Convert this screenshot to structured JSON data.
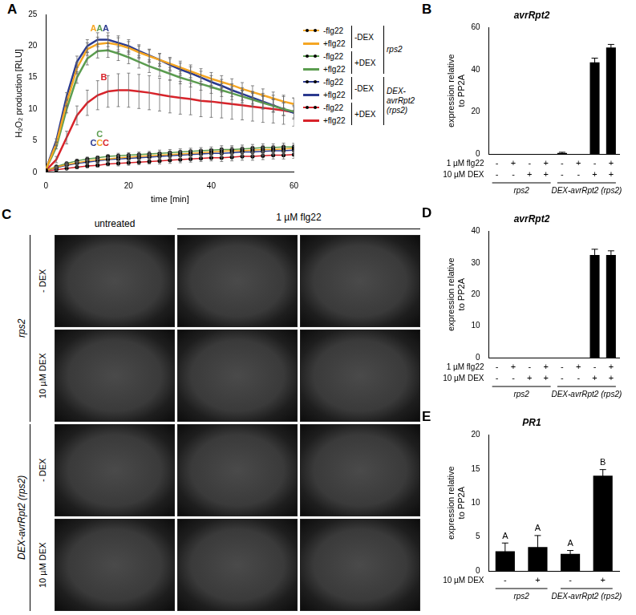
{
  "chart_data": [
    {
      "panel": "A",
      "type": "line",
      "x_label": "time [min]",
      "y_label": "H₂O₂ production [RLU]",
      "xlim": [
        0,
        60
      ],
      "xticks": [
        0,
        20,
        40,
        60
      ],
      "ylim": [
        0,
        25
      ],
      "yticks": [
        0,
        5,
        10,
        15,
        20,
        25
      ],
      "grid": false,
      "legend": "right",
      "x": [
        0,
        2.5,
        5,
        7.5,
        10,
        12.5,
        15,
        17.5,
        20,
        22.5,
        25,
        27.5,
        30,
        32.5,
        35,
        37.5,
        40,
        42.5,
        45,
        47.5,
        50,
        52.5,
        55,
        57.5,
        60
      ],
      "series": [
        {
          "name": "-flg22",
          "dex": "-DEX",
          "genotype": "rps2",
          "color": "#f5a623",
          "marker": "circle",
          "line_style": "solid",
          "values": [
            0.3,
            0.8,
            1.2,
            1.5,
            1.8,
            2.0,
            2.1,
            2.3,
            2.4,
            2.5,
            2.6,
            2.7,
            2.8,
            2.9,
            3.0,
            3.1,
            3.2,
            3.3,
            3.4,
            3.4,
            3.5,
            3.6,
            3.6,
            3.7,
            3.8
          ],
          "errors": [
            0,
            0.1,
            0.2,
            0.2,
            0.3,
            0.3,
            0.3,
            0.4,
            0.4,
            0.4,
            0.4,
            0.5,
            0.5,
            0.5,
            0.5,
            0.5,
            0.5,
            0.6,
            0.6,
            0.6,
            0.6,
            0.6,
            0.6,
            0.6,
            0.6
          ]
        },
        {
          "name": "+flg22",
          "dex": "-DEX",
          "genotype": "rps2",
          "color": "#f5a623",
          "marker": "none",
          "line_style": "solid",
          "values": [
            0.5,
            4.5,
            11,
            16.5,
            19.5,
            20.3,
            20.5,
            20.2,
            19.7,
            19,
            18.4,
            17.8,
            17.2,
            16.6,
            16,
            15.4,
            14.8,
            14.3,
            13.8,
            13.2,
            12.7,
            12.2,
            11.7,
            11.2,
            10.8
          ],
          "errors": [
            0,
            0.3,
            0.6,
            0.9,
            1,
            1.1,
            1.1,
            1.1,
            1,
            1,
            1,
            1,
            1,
            1,
            1,
            1,
            1,
            1,
            1,
            1,
            1,
            1,
            1,
            1,
            1
          ]
        },
        {
          "name": "-flg22",
          "dex": "+DEX",
          "genotype": "rps2",
          "color": "#5b9d4f",
          "marker": "circle",
          "line_style": "solid",
          "values": [
            0.3,
            0.9,
            1.4,
            1.8,
            2.1,
            2.3,
            2.5,
            2.6,
            2.7,
            2.8,
            2.9,
            3.0,
            3.1,
            3.2,
            3.3,
            3.4,
            3.5,
            3.6,
            3.6,
            3.7,
            3.8,
            3.9,
            3.9,
            4.0,
            4.0
          ],
          "errors": [
            0,
            0.1,
            0.2,
            0.2,
            0.3,
            0.3,
            0.3,
            0.4,
            0.4,
            0.4,
            0.4,
            0.5,
            0.5,
            0.5,
            0.5,
            0.5,
            0.5,
            0.6,
            0.6,
            0.6,
            0.6,
            0.6,
            0.6,
            0.6,
            0.6
          ]
        },
        {
          "name": "+flg22",
          "dex": "+DEX",
          "genotype": "rps2",
          "color": "#5b9d4f",
          "marker": "none",
          "line_style": "solid",
          "values": [
            0.5,
            4,
            10,
            15,
            18,
            19.2,
            19.3,
            18.8,
            18.2,
            17.5,
            16.8,
            16.2,
            15.6,
            15,
            14.5,
            14,
            13.5,
            13,
            12.5,
            12,
            11.5,
            11,
            10.5,
            10,
            9.6
          ],
          "errors": [
            0,
            0.3,
            0.6,
            0.9,
            1,
            1.1,
            1.1,
            1.1,
            1,
            1,
            1,
            1,
            1,
            1,
            1,
            1,
            1,
            1,
            1,
            1,
            1,
            1,
            1,
            1,
            1
          ]
        },
        {
          "name": "-flg22",
          "dex": "-DEX",
          "genotype": "DEX-avrRpt2 (rps2)",
          "color": "#2b3a8f",
          "marker": "circle",
          "line_style": "solid",
          "values": [
            0.3,
            0.7,
            1.1,
            1.4,
            1.6,
            1.8,
            2.0,
            2.1,
            2.2,
            2.3,
            2.4,
            2.5,
            2.6,
            2.7,
            2.8,
            2.9,
            3.0,
            3.0,
            3.1,
            3.2,
            3.2,
            3.3,
            3.4,
            3.4,
            3.5
          ],
          "errors": [
            0,
            0.1,
            0.2,
            0.2,
            0.3,
            0.3,
            0.3,
            0.4,
            0.4,
            0.4,
            0.4,
            0.5,
            0.5,
            0.5,
            0.5,
            0.5,
            0.5,
            0.6,
            0.6,
            0.6,
            0.6,
            0.6,
            0.6,
            0.6,
            0.6
          ]
        },
        {
          "name": "+flg22",
          "dex": "-DEX",
          "genotype": "DEX-avrRpt2 (rps2)",
          "color": "#2b3a8f",
          "marker": "none",
          "line_style": "solid",
          "values": [
            0.5,
            5,
            12,
            17.5,
            20,
            21,
            21,
            20.5,
            20,
            19.2,
            18.5,
            17.8,
            17,
            16.3,
            15.7,
            15,
            14.3,
            13.7,
            13,
            12.4,
            11.8,
            11.2,
            10.6,
            10,
            9.4
          ],
          "errors": [
            0,
            0.3,
            0.6,
            0.9,
            1,
            1.1,
            1.1,
            1.1,
            1,
            1,
            1,
            1,
            1,
            1,
            1,
            1,
            1,
            1,
            1,
            1,
            1,
            1,
            1,
            1,
            1
          ]
        },
        {
          "name": "-flg22",
          "dex": "+DEX",
          "genotype": "DEX-avrRpt2 (rps2)",
          "color": "#d8232a",
          "marker": "circle",
          "line_style": "solid",
          "values": [
            0.2,
            0.4,
            0.6,
            0.8,
            1.0,
            1.1,
            1.3,
            1.4,
            1.5,
            1.6,
            1.7,
            1.8,
            1.9,
            2.0,
            2.1,
            2.2,
            2.3,
            2.3,
            2.4,
            2.5,
            2.5,
            2.6,
            2.7,
            2.7,
            2.8
          ],
          "errors": [
            0,
            0.1,
            0.2,
            0.2,
            0.3,
            0.3,
            0.3,
            0.4,
            0.4,
            0.4,
            0.4,
            0.5,
            0.5,
            0.5,
            0.5,
            0.5,
            0.5,
            0.6,
            0.6,
            0.6,
            0.6,
            0.6,
            0.6,
            0.6,
            0.6
          ]
        },
        {
          "name": "+flg22",
          "dex": "+DEX",
          "genotype": "DEX-avrRpt2 (rps2)",
          "color": "#d8232a",
          "marker": "none",
          "line_style": "solid",
          "values": [
            0.3,
            2,
            5.5,
            9,
            11,
            12.2,
            12.8,
            13,
            13,
            12.8,
            12.6,
            12.3,
            12,
            11.8,
            11.6,
            11.3,
            11.2,
            11,
            10.8,
            10.6,
            10.4,
            10.2,
            10,
            9.8,
            9.5
          ],
          "errors": [
            0,
            0.5,
            1,
            1.5,
            2,
            2.3,
            2.5,
            2.6,
            2.7,
            2.7,
            2.7,
            2.6,
            2.6,
            2.6,
            2.5,
            2.5,
            2.5,
            2.4,
            2.4,
            2.3,
            2.3,
            2.3,
            2.2,
            2.2,
            2.2
          ]
        }
      ],
      "annotations": [
        {
          "text": "A",
          "x": 11.5,
          "y": 22.3,
          "color": "#f5a623"
        },
        {
          "text": "A",
          "x": 13,
          "y": 22.3,
          "color": "#5b9d4f"
        },
        {
          "text": "A",
          "x": 14.5,
          "y": 22.3,
          "color": "#2b3a8f"
        },
        {
          "text": "B",
          "x": 14,
          "y": 14.6,
          "color": "#d8232a"
        },
        {
          "text": "C",
          "x": 13,
          "y": 5.6,
          "color": "#5b9d4f"
        },
        {
          "text": "C",
          "x": 11.5,
          "y": 4.2,
          "color": "#2b3a8f"
        },
        {
          "text": "C",
          "x": 13,
          "y": 4.2,
          "color": "#f5a623"
        },
        {
          "text": "C",
          "x": 14.5,
          "y": 4.2,
          "color": "#d8232a"
        }
      ]
    },
    {
      "panel": "B",
      "type": "bar",
      "title": "avrRpt2",
      "y_label": [
        "expression relative",
        "to PP2A"
      ],
      "ylim": [
        0,
        60
      ],
      "yticks": [
        0,
        20,
        40,
        60
      ],
      "grid": false,
      "color": "#000000",
      "categories": [
        null,
        null,
        null,
        null,
        null,
        null,
        null,
        null
      ],
      "values": [
        0,
        0,
        0,
        0,
        0.5,
        0,
        43.5,
        50.5
      ],
      "errors": [
        0,
        0,
        0,
        0,
        0.3,
        0,
        2,
        1.5
      ],
      "treatments": [
        {
          "label": "1 µM flg22",
          "values": [
            "-",
            "+",
            "-",
            "+",
            "-",
            "+",
            "-",
            "+"
          ]
        },
        {
          "label": "10 µM DEX",
          "values": [
            "-",
            "-",
            "+",
            "+",
            "-",
            "-",
            "+",
            "+"
          ]
        }
      ],
      "groups": [
        "rps2",
        "rps2",
        "rps2",
        "rps2",
        "DEX-avrRpt2 (rps2)",
        "DEX-avrRpt2 (rps2)",
        "DEX-avrRpt2 (rps2)",
        "DEX-avrRpt2 (rps2)"
      ]
    },
    {
      "panel": "D",
      "type": "bar",
      "title": "avrRpt2",
      "y_label": [
        "expression relative",
        "to PP2A"
      ],
      "ylim": [
        0,
        40
      ],
      "yticks": [
        0,
        10,
        20,
        30,
        40
      ],
      "grid": false,
      "color": "#000000",
      "categories": [
        null,
        null,
        null,
        null,
        null,
        null,
        null,
        null
      ],
      "values": [
        0,
        0,
        0,
        0,
        0,
        0,
        32.5,
        32.5
      ],
      "errors": [
        0,
        0,
        0,
        0,
        0,
        0,
        1.8,
        1.3
      ],
      "treatments": [
        {
          "label": "1 µM flg22",
          "values": [
            "-",
            "+",
            "-",
            "+",
            "-",
            "+",
            "-",
            "+"
          ]
        },
        {
          "label": "10 µM DEX",
          "values": [
            "-",
            "-",
            "+",
            "+",
            "-",
            "-",
            "+",
            "+"
          ]
        }
      ],
      "groups": [
        "rps2",
        "rps2",
        "rps2",
        "rps2",
        "DEX-avrRpt2 (rps2)",
        "DEX-avrRpt2 (rps2)",
        "DEX-avrRpt2 (rps2)",
        "DEX-avrRpt2 (rps2)"
      ]
    },
    {
      "panel": "E",
      "type": "bar",
      "title": "PR1",
      "y_label": [
        "expression relative",
        "to PP2A"
      ],
      "ylim": [
        0,
        20
      ],
      "yticks": [
        0,
        5,
        10,
        15,
        20
      ],
      "grid": false,
      "color": "#000000",
      "categories": [
        null,
        null,
        null,
        null
      ],
      "values": [
        2.9,
        3.5,
        2.5,
        14
      ],
      "errors": [
        1.2,
        1.7,
        0.5,
        0.9
      ],
      "letters": [
        "A",
        "A",
        "A",
        "B"
      ],
      "treatments": [
        {
          "label": "10 µM DEX",
          "values": [
            "-",
            "+",
            "-",
            "+"
          ]
        }
      ],
      "groups": [
        "rps2",
        "rps2",
        "DEX-avrRpt2 (rps2)",
        "DEX-avrRpt2 (rps2)"
      ]
    }
  ],
  "image_panel": {
    "panel": "C",
    "column_headers": [
      "untreated",
      "1 µM flg22"
    ],
    "row_groups": [
      {
        "label": "rps2",
        "rows": [
          "- DEX",
          "10 µM DEX"
        ]
      },
      {
        "label": "DEX-avrRpt2 (rps2)",
        "rows": [
          "- DEX",
          "10 µM DEX"
        ]
      }
    ]
  }
}
